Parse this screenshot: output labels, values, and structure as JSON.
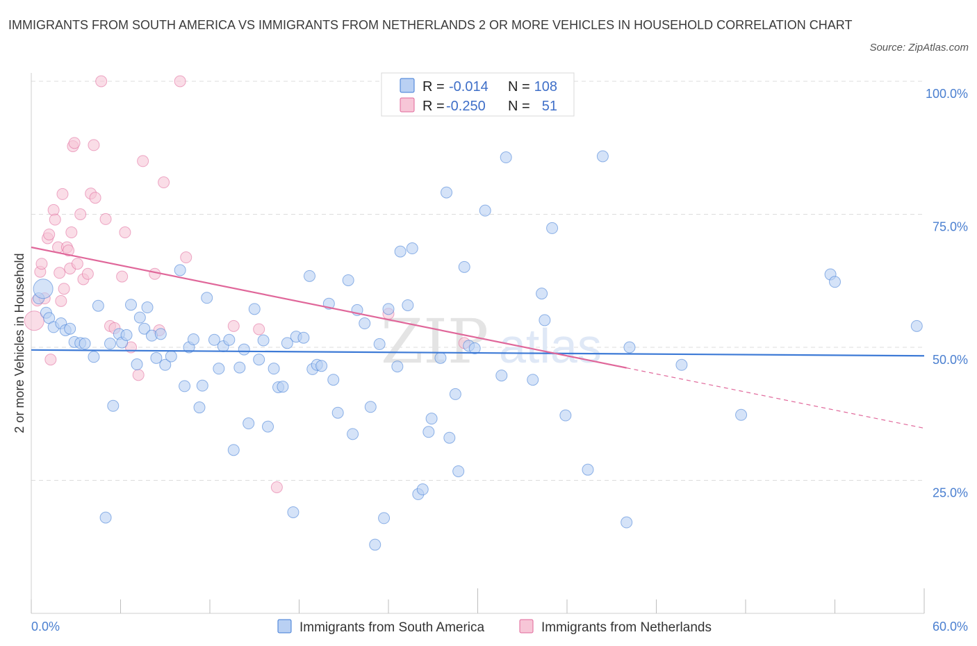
{
  "title": "IMMIGRANTS FROM SOUTH AMERICA VS IMMIGRANTS FROM NETHERLANDS 2 OR MORE VEHICLES IN HOUSEHOLD CORRELATION CHART",
  "source": "Source: ZipAtlas.com",
  "watermark": {
    "zip": "ZIP",
    "atlas": "atlas"
  },
  "colors": {
    "blue": "#3d7ad6",
    "blue_fill": "#b9d0f3",
    "pink": "#e0679a",
    "pink_fill": "#f7c6d7",
    "axis_text": "#4a7fd0",
    "grid": "#dcdcdc"
  },
  "legend": {
    "r_label": "R =",
    "n_label": "N =",
    "series": [
      {
        "r": "-0.014",
        "n": "108"
      },
      {
        "r": "-0.250",
        "n": "51"
      }
    ]
  },
  "chart_data": {
    "type": "scatter",
    "title": "IMMIGRANTS FROM SOUTH AMERICA VS IMMIGRANTS FROM NETHERLANDS 2 OR MORE VEHICLES IN HOUSEHOLD CORRELATION CHART",
    "xlabel": "",
    "ylabel": "2 or more Vehicles in Household",
    "xlim": [
      0,
      60
    ],
    "ylim": [
      0,
      100
    ],
    "x_tick_labels": [
      "0.0%",
      "60.0%"
    ],
    "y_ticks": [
      25,
      50,
      75,
      100
    ],
    "y_tick_labels": [
      "25.0%",
      "50.0%",
      "75.0%",
      "100.0%"
    ],
    "grid": true,
    "legend_position": "top-center",
    "series": [
      {
        "name": "Immigrants from South America",
        "color": "#3d7ad6",
        "trend": {
          "x": [
            0,
            60
          ],
          "y": [
            49.5,
            48.4
          ],
          "solid_to": 60
        },
        "points": [
          [
            0.5,
            59.2
          ],
          [
            0.8,
            61.0
          ],
          [
            1.0,
            56.5
          ],
          [
            1.2,
            55.5
          ],
          [
            1.5,
            53.8
          ],
          [
            2.0,
            54.5
          ],
          [
            2.3,
            53.2
          ],
          [
            2.6,
            53.5
          ],
          [
            2.9,
            51.0
          ],
          [
            3.3,
            50.8
          ],
          [
            3.6,
            50.7
          ],
          [
            4.2,
            48.2
          ],
          [
            4.5,
            57.8
          ],
          [
            5.0,
            18.0
          ],
          [
            5.3,
            50.7
          ],
          [
            5.5,
            39.0
          ],
          [
            5.9,
            52.5
          ],
          [
            6.1,
            50.9
          ],
          [
            6.4,
            52.3
          ],
          [
            6.7,
            58.0
          ],
          [
            7.1,
            46.8
          ],
          [
            7.3,
            55.6
          ],
          [
            7.6,
            53.5
          ],
          [
            7.8,
            57.5
          ],
          [
            8.1,
            52.2
          ],
          [
            8.4,
            48.0
          ],
          [
            8.7,
            52.5
          ],
          [
            9.0,
            46.7
          ],
          [
            9.4,
            48.3
          ],
          [
            10.0,
            64.5
          ],
          [
            10.3,
            42.7
          ],
          [
            10.6,
            50.0
          ],
          [
            10.9,
            51.5
          ],
          [
            11.3,
            38.7
          ],
          [
            11.5,
            42.8
          ],
          [
            11.8,
            59.3
          ],
          [
            12.3,
            51.4
          ],
          [
            12.6,
            46.0
          ],
          [
            12.9,
            50.2
          ],
          [
            13.3,
            51.4
          ],
          [
            13.6,
            30.7
          ],
          [
            14.0,
            46.2
          ],
          [
            14.3,
            49.6
          ],
          [
            14.6,
            35.7
          ],
          [
            15.0,
            57.2
          ],
          [
            15.3,
            47.7
          ],
          [
            15.6,
            51.3
          ],
          [
            15.9,
            35.1
          ],
          [
            16.3,
            46.0
          ],
          [
            16.6,
            42.5
          ],
          [
            16.9,
            42.6
          ],
          [
            17.2,
            50.8
          ],
          [
            17.6,
            19.0
          ],
          [
            17.8,
            52.0
          ],
          [
            18.3,
            51.8
          ],
          [
            18.7,
            63.4
          ],
          [
            18.9,
            45.9
          ],
          [
            19.2,
            46.7
          ],
          [
            19.5,
            46.5
          ],
          [
            20.0,
            58.2
          ],
          [
            20.3,
            43.9
          ],
          [
            20.6,
            37.7
          ],
          [
            21.3,
            62.6
          ],
          [
            21.6,
            33.7
          ],
          [
            21.9,
            57.0
          ],
          [
            22.4,
            54.5
          ],
          [
            22.8,
            38.8
          ],
          [
            23.1,
            12.9
          ],
          [
            23.4,
            50.6
          ],
          [
            23.7,
            17.9
          ],
          [
            24.0,
            57.2
          ],
          [
            24.6,
            46.4
          ],
          [
            24.8,
            68.0
          ],
          [
            25.3,
            57.9
          ],
          [
            25.6,
            68.6
          ],
          [
            26.0,
            22.4
          ],
          [
            26.3,
            23.3
          ],
          [
            26.7,
            34.1
          ],
          [
            26.9,
            36.6
          ],
          [
            27.5,
            48.0
          ],
          [
            27.9,
            79.1
          ],
          [
            28.1,
            33.0
          ],
          [
            28.5,
            41.2
          ],
          [
            28.7,
            26.7
          ],
          [
            29.1,
            65.1
          ],
          [
            29.4,
            50.3
          ],
          [
            29.8,
            49.8
          ],
          [
            30.5,
            75.7
          ],
          [
            31.6,
            44.7
          ],
          [
            31.9,
            85.7
          ],
          [
            33.7,
            43.9
          ],
          [
            34.3,
            60.1
          ],
          [
            34.5,
            55.1
          ],
          [
            35.0,
            72.4
          ],
          [
            35.9,
            37.2
          ],
          [
            37.4,
            27.0
          ],
          [
            38.4,
            85.9
          ],
          [
            40.0,
            17.1
          ],
          [
            40.2,
            50.0
          ],
          [
            43.7,
            46.7
          ],
          [
            47.7,
            37.3
          ],
          [
            53.7,
            63.7
          ],
          [
            54.0,
            62.3
          ],
          [
            59.5,
            54.0
          ]
        ]
      },
      {
        "name": "Immigrants from Netherlands",
        "color": "#e0679a",
        "trend": {
          "x": [
            0,
            60
          ],
          "y": [
            68.8,
            34.8
          ],
          "solid_to": 40
        },
        "points": [
          [
            0.2,
            55.0
          ],
          [
            0.4,
            58.8
          ],
          [
            0.6,
            64.2
          ],
          [
            0.7,
            65.7
          ],
          [
            0.9,
            59.2
          ],
          [
            1.1,
            70.5
          ],
          [
            1.2,
            71.2
          ],
          [
            1.3,
            47.7
          ],
          [
            1.5,
            75.8
          ],
          [
            1.6,
            74.0
          ],
          [
            1.8,
            68.8
          ],
          [
            1.9,
            64.0
          ],
          [
            2.0,
            58.7
          ],
          [
            2.1,
            78.8
          ],
          [
            2.2,
            61.0
          ],
          [
            2.4,
            68.8
          ],
          [
            2.5,
            68.2
          ],
          [
            2.6,
            64.8
          ],
          [
            2.7,
            71.6
          ],
          [
            2.8,
            87.8
          ],
          [
            2.9,
            88.4
          ],
          [
            3.1,
            65.7
          ],
          [
            3.3,
            75.0
          ],
          [
            3.5,
            62.8
          ],
          [
            3.8,
            63.8
          ],
          [
            4.0,
            78.9
          ],
          [
            4.2,
            88.0
          ],
          [
            4.3,
            78.1
          ],
          [
            4.7,
            100.0
          ],
          [
            5.0,
            74.1
          ],
          [
            5.3,
            54.0
          ],
          [
            5.6,
            53.6
          ],
          [
            6.1,
            63.3
          ],
          [
            6.3,
            71.6
          ],
          [
            6.7,
            50.0
          ],
          [
            7.2,
            44.8
          ],
          [
            7.5,
            85.0
          ],
          [
            8.3,
            63.8
          ],
          [
            8.6,
            53.2
          ],
          [
            8.9,
            81.0
          ],
          [
            10.0,
            100.0
          ],
          [
            10.4,
            66.9
          ],
          [
            13.6,
            54.0
          ],
          [
            15.3,
            53.4
          ],
          [
            16.5,
            23.7
          ],
          [
            24.0,
            56.3
          ],
          [
            29.1,
            50.8
          ]
        ]
      }
    ]
  },
  "bottom_legend": [
    {
      "label": "Immigrants from South America"
    },
    {
      "label": "Immigrants from Netherlands"
    }
  ]
}
